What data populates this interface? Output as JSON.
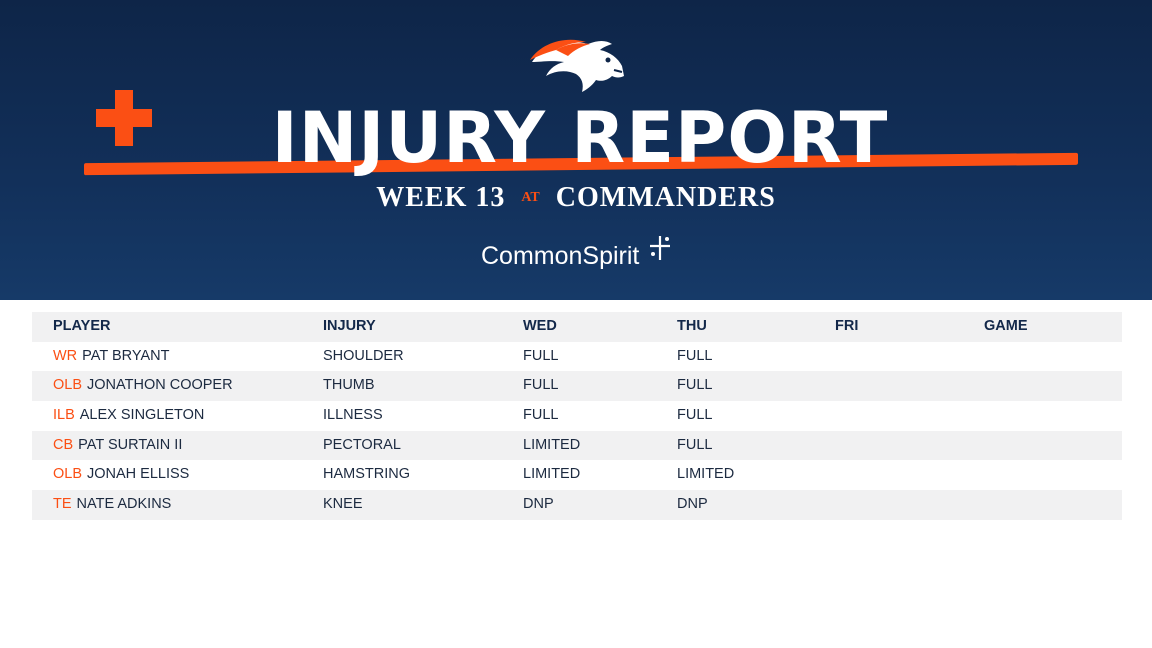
{
  "header": {
    "logo_icon": "broncos-horse-head-logo",
    "cross_icon": "medical-cross-icon",
    "title": "INJURY REPORT",
    "week": "WEEK 13",
    "at": "AT",
    "opponent": "COMMANDERS",
    "sponsor": "CommonSpirit",
    "sponsor_icon": "commonspirit-sparkle-icon"
  },
  "colors": {
    "navy": "#0e2548",
    "orange": "#fb4f14",
    "row_shade": "#f1f1f2"
  },
  "table": {
    "columns": [
      "PLAYER",
      "INJURY",
      "WED",
      "THU",
      "FRI",
      "GAME"
    ],
    "rows": [
      {
        "pos": "WR",
        "name": "PAT BRYANT",
        "injury": "SHOULDER",
        "wed": "FULL",
        "thu": "FULL",
        "fri": "",
        "game": ""
      },
      {
        "pos": "OLB",
        "name": "JONATHON COOPER",
        "injury": "THUMB",
        "wed": "FULL",
        "thu": "FULL",
        "fri": "",
        "game": ""
      },
      {
        "pos": "ILB",
        "name": "ALEX SINGLETON",
        "injury": "ILLNESS",
        "wed": "FULL",
        "thu": "FULL",
        "fri": "",
        "game": ""
      },
      {
        "pos": "CB",
        "name": "PAT SURTAIN II",
        "injury": "PECTORAL",
        "wed": "LIMITED",
        "thu": "FULL",
        "fri": "",
        "game": ""
      },
      {
        "pos": "OLB",
        "name": "JONAH ELLISS",
        "injury": "HAMSTRING",
        "wed": "LIMITED",
        "thu": "LIMITED",
        "fri": "",
        "game": ""
      },
      {
        "pos": "TE",
        "name": "NATE ADKINS",
        "injury": "KNEE",
        "wed": "DNP",
        "thu": "DNP",
        "fri": "",
        "game": ""
      }
    ]
  }
}
